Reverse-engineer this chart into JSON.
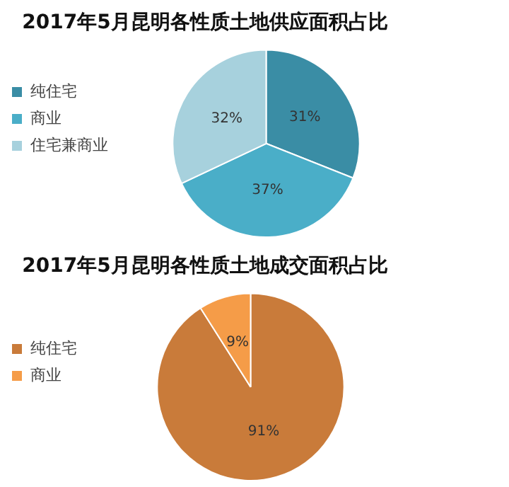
{
  "chart_data": [
    {
      "type": "pie",
      "title": "2017年5月昆明各性质土地供应面积占比",
      "categories": [
        "纯住宅",
        "商业",
        "住宅兼商业"
      ],
      "values": [
        31,
        37,
        32
      ],
      "colors": [
        "#3a8da5",
        "#4aaec8",
        "#a7d1dd"
      ],
      "value_labels": [
        "31%",
        "37%",
        "32%"
      ],
      "legend": "left"
    },
    {
      "type": "pie",
      "title": "2017年5月昆明各性质土地成交面积占比",
      "categories": [
        "纯住宅",
        "商业"
      ],
      "values": [
        91,
        9
      ],
      "colors": [
        "#c97b3a",
        "#f59c48"
      ],
      "value_labels": [
        "91%",
        "9%"
      ],
      "legend": "left"
    }
  ]
}
